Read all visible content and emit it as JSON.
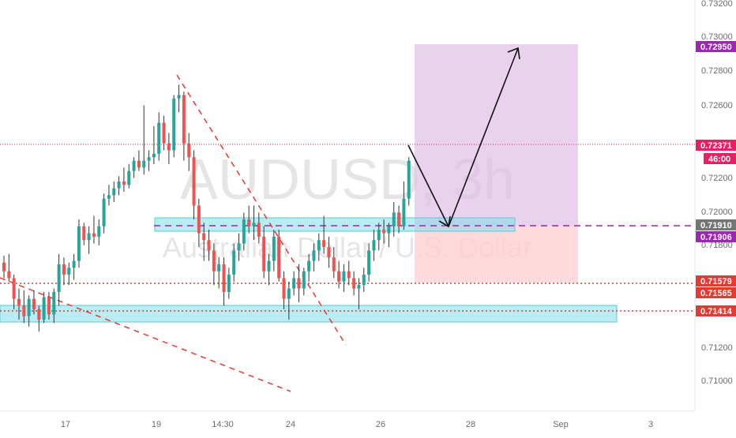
{
  "chart_data": {
    "type": "candlestick",
    "watermark": {
      "symbol": "AUDUSD, 3h",
      "description": "Australian Dollar / U.S. Dollar"
    },
    "y_axis": {
      "range": [
        0.7089,
        0.7327
      ],
      "ticks": [
        "0.71000",
        "0.71200",
        "0.71800",
        "0.72000",
        "0.72200",
        "0.72600",
        "0.72800",
        "0.73000",
        "0.73200"
      ]
    },
    "x_axis": {
      "labels": [
        "17",
        "19",
        "14:30",
        "24",
        "26",
        "28",
        "Sep",
        "3"
      ]
    },
    "price_labels": [
      {
        "text": "0.72950",
        "value": 0.7295,
        "color": "#9c27b0"
      },
      {
        "text": "0.72371",
        "value": 0.72371,
        "color": "#e91e63"
      },
      {
        "text": "46:00",
        "value": 0.7226,
        "color": "#e91e63"
      },
      {
        "text": "0.71910",
        "value": 0.7191,
        "color": "#757575"
      },
      {
        "text": "0.71906",
        "value": 0.71906,
        "color": "#9c27b0"
      },
      {
        "text": "0.71579",
        "value": 0.71579,
        "color": "#e53935"
      },
      {
        "text": "0.71565",
        "value": 0.71565,
        "color": "#e53935"
      },
      {
        "text": "0.71414",
        "value": 0.71414,
        "color": "#e53935"
      }
    ],
    "candles": [
      [
        0.7175,
        0.7179,
        0.7166,
        0.717
      ],
      [
        0.717,
        0.718,
        0.7164,
        0.7166
      ],
      [
        0.7166,
        0.7168,
        0.7148,
        0.7154
      ],
      [
        0.7154,
        0.716,
        0.7142,
        0.715
      ],
      [
        0.715,
        0.7159,
        0.714,
        0.7144
      ],
      [
        0.7144,
        0.7156,
        0.7138,
        0.7154
      ],
      [
        0.7154,
        0.7159,
        0.7145,
        0.7148
      ],
      [
        0.7148,
        0.715,
        0.7135,
        0.7142
      ],
      [
        0.7142,
        0.7158,
        0.714,
        0.7155
      ],
      [
        0.7155,
        0.7158,
        0.7142,
        0.7145
      ],
      [
        0.7145,
        0.716,
        0.714,
        0.7158
      ],
      [
        0.7158,
        0.718,
        0.715,
        0.7174
      ],
      [
        0.7174,
        0.7178,
        0.7162,
        0.7168
      ],
      [
        0.7168,
        0.7175,
        0.7162,
        0.7172
      ],
      [
        0.7172,
        0.718,
        0.7165,
        0.7176
      ],
      [
        0.7176,
        0.72,
        0.7172,
        0.7196
      ],
      [
        0.7196,
        0.7198,
        0.7185,
        0.7188
      ],
      [
        0.7188,
        0.7196,
        0.718,
        0.7192
      ],
      [
        0.7192,
        0.7202,
        0.7186,
        0.719
      ],
      [
        0.719,
        0.72,
        0.7185,
        0.7196
      ],
      [
        0.7196,
        0.7215,
        0.7192,
        0.7212
      ],
      [
        0.7212,
        0.722,
        0.7208,
        0.7214
      ],
      [
        0.7214,
        0.7222,
        0.721,
        0.7218
      ],
      [
        0.7218,
        0.7225,
        0.7214,
        0.7222
      ],
      [
        0.7222,
        0.723,
        0.7216,
        0.722
      ],
      [
        0.722,
        0.7232,
        0.7218,
        0.7228
      ],
      [
        0.7228,
        0.7236,
        0.7224,
        0.7234
      ],
      [
        0.7234,
        0.724,
        0.7228,
        0.723
      ],
      [
        0.723,
        0.7266,
        0.7226,
        0.7234
      ],
      [
        0.7234,
        0.724,
        0.7228,
        0.7236
      ],
      [
        0.7236,
        0.7254,
        0.7232,
        0.7238
      ],
      [
        0.7238,
        0.7262,
        0.7234,
        0.7256
      ],
      [
        0.7256,
        0.726,
        0.724,
        0.7244
      ],
      [
        0.7244,
        0.725,
        0.7232,
        0.724
      ],
      [
        0.724,
        0.7272,
        0.7236,
        0.727
      ],
      [
        0.727,
        0.7278,
        0.7262,
        0.7272
      ],
      [
        0.7272,
        0.7274,
        0.7234,
        0.7244
      ],
      [
        0.7244,
        0.725,
        0.7228,
        0.7236
      ],
      [
        0.7236,
        0.724,
        0.72,
        0.7208
      ],
      [
        0.7208,
        0.7212,
        0.7184,
        0.7192
      ],
      [
        0.7192,
        0.7198,
        0.7176,
        0.7188
      ],
      [
        0.7188,
        0.7194,
        0.7176,
        0.7182
      ],
      [
        0.7182,
        0.7186,
        0.7162,
        0.717
      ],
      [
        0.717,
        0.7178,
        0.716,
        0.7174
      ],
      [
        0.7174,
        0.7178,
        0.715,
        0.7158
      ],
      [
        0.7158,
        0.7172,
        0.7154,
        0.7168
      ],
      [
        0.7168,
        0.7186,
        0.7164,
        0.7182
      ],
      [
        0.7182,
        0.7192,
        0.7176,
        0.7186
      ],
      [
        0.7186,
        0.7204,
        0.7182,
        0.72
      ],
      [
        0.72,
        0.7208,
        0.7192,
        0.7196
      ],
      [
        0.7196,
        0.7208,
        0.7188,
        0.7198
      ],
      [
        0.7198,
        0.7204,
        0.7186,
        0.719
      ],
      [
        0.719,
        0.7196,
        0.7166,
        0.717
      ],
      [
        0.717,
        0.718,
        0.7162,
        0.7176
      ],
      [
        0.7176,
        0.7194,
        0.717,
        0.719
      ],
      [
        0.719,
        0.7194,
        0.7164,
        0.7166
      ],
      [
        0.7166,
        0.717,
        0.7148,
        0.7154
      ],
      [
        0.7154,
        0.7164,
        0.7142,
        0.716
      ],
      [
        0.716,
        0.717,
        0.7156,
        0.7166
      ],
      [
        0.7166,
        0.7174,
        0.7152,
        0.716
      ],
      [
        0.716,
        0.7172,
        0.7156,
        0.717
      ],
      [
        0.717,
        0.718,
        0.7164,
        0.7176
      ],
      [
        0.7176,
        0.7186,
        0.717,
        0.7182
      ],
      [
        0.7182,
        0.7192,
        0.7176,
        0.7188
      ],
      [
        0.7188,
        0.7202,
        0.718,
        0.7184
      ],
      [
        0.7184,
        0.719,
        0.7172,
        0.7178
      ],
      [
        0.7178,
        0.7184,
        0.7166,
        0.717
      ],
      [
        0.717,
        0.7176,
        0.716,
        0.7164
      ],
      [
        0.7164,
        0.7174,
        0.7158,
        0.717
      ],
      [
        0.717,
        0.7176,
        0.7162,
        0.7166
      ],
      [
        0.7166,
        0.717,
        0.7156,
        0.716
      ],
      [
        0.716,
        0.7166,
        0.7148,
        0.7162
      ],
      [
        0.7162,
        0.7172,
        0.7158,
        0.7168
      ],
      [
        0.7168,
        0.7186,
        0.7164,
        0.7182
      ],
      [
        0.7182,
        0.7194,
        0.7176,
        0.7188
      ],
      [
        0.7188,
        0.7198,
        0.7182,
        0.7194
      ],
      [
        0.7194,
        0.72,
        0.7186,
        0.7192
      ],
      [
        0.7192,
        0.7198,
        0.7184,
        0.7196
      ],
      [
        0.7196,
        0.721,
        0.719,
        0.7204
      ],
      [
        0.7204,
        0.7208,
        0.7192,
        0.7196
      ],
      [
        0.7196,
        0.7222,
        0.7194,
        0.7212
      ],
      [
        0.7212,
        0.7236,
        0.7208,
        0.7234
      ]
    ]
  }
}
